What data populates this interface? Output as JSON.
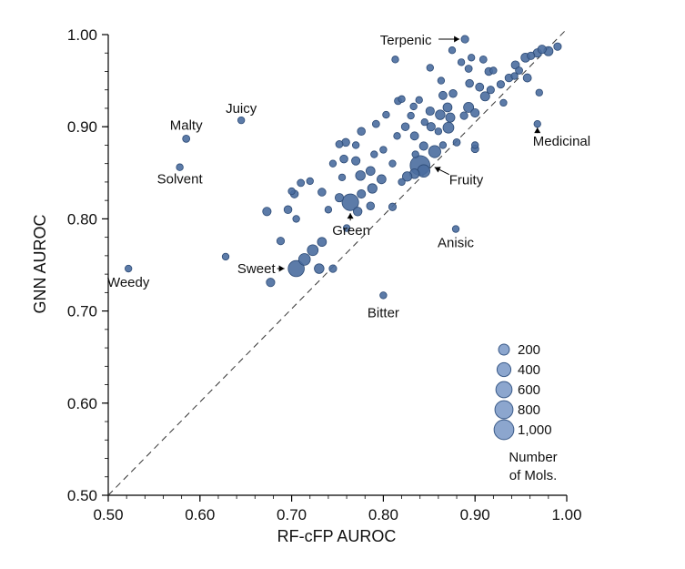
{
  "chart_data": {
    "type": "scatter",
    "title": "",
    "xlabel": "RF-cFP AUROC",
    "ylabel": "GNN AUROC",
    "xlim": [
      0.5,
      1.0
    ],
    "ylim": [
      0.5,
      1.0
    ],
    "x_ticks": [
      "0.50",
      "0.60",
      "0.70",
      "0.80",
      "0.90",
      "1.00"
    ],
    "y_ticks": [
      "0.50",
      "0.60",
      "0.70",
      "0.80",
      "0.90",
      "1.00"
    ],
    "diagonal_reference": true,
    "grid": false,
    "legend": {
      "placement": "bottom-right",
      "sizes": [
        200,
        400,
        600,
        800,
        1000
      ],
      "labels": [
        "200",
        "400",
        "600",
        "800",
        "1,000"
      ],
      "title_lines": [
        "Number",
        "of Mols."
      ]
    },
    "annotations": [
      {
        "label": "Terpenic",
        "x": 0.889,
        "y": 0.995,
        "arrow": true
      },
      {
        "label": "Juicy",
        "x": 0.645,
        "y": 0.907,
        "arrow": false
      },
      {
        "label": "Malty",
        "x": 0.585,
        "y": 0.887,
        "arrow": false
      },
      {
        "label": "Solvent",
        "x": 0.578,
        "y": 0.856,
        "arrow": false
      },
      {
        "label": "Medicinal",
        "x": 0.968,
        "y": 0.903,
        "arrow": true
      },
      {
        "label": "Fruity",
        "x": 0.84,
        "y": 0.858,
        "arrow": true
      },
      {
        "label": "Green",
        "x": 0.764,
        "y": 0.818,
        "arrow": true
      },
      {
        "label": "Anisic",
        "x": 0.879,
        "y": 0.789,
        "arrow": false
      },
      {
        "label": "Sweet",
        "x": 0.705,
        "y": 0.746,
        "arrow": true
      },
      {
        "label": "Weedy",
        "x": 0.522,
        "y": 0.746,
        "arrow": false
      },
      {
        "label": "Bitter",
        "x": 0.8,
        "y": 0.717,
        "arrow": false
      }
    ],
    "points": [
      {
        "x": 0.889,
        "y": 0.995,
        "n": 60
      },
      {
        "x": 0.645,
        "y": 0.907,
        "n": 40
      },
      {
        "x": 0.585,
        "y": 0.887,
        "n": 50
      },
      {
        "x": 0.578,
        "y": 0.856,
        "n": 40
      },
      {
        "x": 0.968,
        "y": 0.903,
        "n": 40
      },
      {
        "x": 0.84,
        "y": 0.858,
        "n": 1000
      },
      {
        "x": 0.764,
        "y": 0.818,
        "n": 650
      },
      {
        "x": 0.879,
        "y": 0.789,
        "n": 40
      },
      {
        "x": 0.705,
        "y": 0.746,
        "n": 600
      },
      {
        "x": 0.522,
        "y": 0.746,
        "n": 40
      },
      {
        "x": 0.8,
        "y": 0.717,
        "n": 40
      },
      {
        "x": 0.844,
        "y": 0.852,
        "n": 300
      },
      {
        "x": 0.856,
        "y": 0.873,
        "n": 280
      },
      {
        "x": 0.871,
        "y": 0.899,
        "n": 200
      },
      {
        "x": 0.893,
        "y": 0.921,
        "n": 160
      },
      {
        "x": 0.911,
        "y": 0.933,
        "n": 120
      },
      {
        "x": 0.714,
        "y": 0.756,
        "n": 250
      },
      {
        "x": 0.723,
        "y": 0.766,
        "n": 200
      },
      {
        "x": 0.73,
        "y": 0.746,
        "n": 140
      },
      {
        "x": 0.733,
        "y": 0.775,
        "n": 110
      },
      {
        "x": 0.677,
        "y": 0.731,
        "n": 90
      },
      {
        "x": 0.745,
        "y": 0.746,
        "n": 60
      },
      {
        "x": 0.688,
        "y": 0.776,
        "n": 60
      },
      {
        "x": 0.628,
        "y": 0.759,
        "n": 40
      },
      {
        "x": 0.673,
        "y": 0.808,
        "n": 90
      },
      {
        "x": 0.696,
        "y": 0.81,
        "n": 70
      },
      {
        "x": 0.703,
        "y": 0.827,
        "n": 70
      },
      {
        "x": 0.71,
        "y": 0.839,
        "n": 50
      },
      {
        "x": 0.72,
        "y": 0.841,
        "n": 40
      },
      {
        "x": 0.733,
        "y": 0.829,
        "n": 70
      },
      {
        "x": 0.752,
        "y": 0.823,
        "n": 90
      },
      {
        "x": 0.772,
        "y": 0.808,
        "n": 100
      },
      {
        "x": 0.786,
        "y": 0.814,
        "n": 70
      },
      {
        "x": 0.776,
        "y": 0.827,
        "n": 90
      },
      {
        "x": 0.788,
        "y": 0.833,
        "n": 130
      },
      {
        "x": 0.798,
        "y": 0.843,
        "n": 110
      },
      {
        "x": 0.81,
        "y": 0.813,
        "n": 60
      },
      {
        "x": 0.826,
        "y": 0.846,
        "n": 130
      },
      {
        "x": 0.834,
        "y": 0.849,
        "n": 140
      },
      {
        "x": 0.775,
        "y": 0.847,
        "n": 140
      },
      {
        "x": 0.786,
        "y": 0.852,
        "n": 110
      },
      {
        "x": 0.77,
        "y": 0.863,
        "n": 90
      },
      {
        "x": 0.757,
        "y": 0.865,
        "n": 70
      },
      {
        "x": 0.759,
        "y": 0.883,
        "n": 70
      },
      {
        "x": 0.752,
        "y": 0.881,
        "n": 50
      },
      {
        "x": 0.776,
        "y": 0.895,
        "n": 70
      },
      {
        "x": 0.792,
        "y": 0.903,
        "n": 50
      },
      {
        "x": 0.803,
        "y": 0.913,
        "n": 40
      },
      {
        "x": 0.816,
        "y": 0.928,
        "n": 50
      },
      {
        "x": 0.833,
        "y": 0.922,
        "n": 40
      },
      {
        "x": 0.824,
        "y": 0.9,
        "n": 70
      },
      {
        "x": 0.834,
        "y": 0.89,
        "n": 80
      },
      {
        "x": 0.844,
        "y": 0.879,
        "n": 90
      },
      {
        "x": 0.852,
        "y": 0.9,
        "n": 90
      },
      {
        "x": 0.851,
        "y": 0.917,
        "n": 90
      },
      {
        "x": 0.862,
        "y": 0.913,
        "n": 140
      },
      {
        "x": 0.873,
        "y": 0.91,
        "n": 120
      },
      {
        "x": 0.87,
        "y": 0.921,
        "n": 110
      },
      {
        "x": 0.865,
        "y": 0.934,
        "n": 80
      },
      {
        "x": 0.876,
        "y": 0.936,
        "n": 70
      },
      {
        "x": 0.888,
        "y": 0.912,
        "n": 60
      },
      {
        "x": 0.9,
        "y": 0.915,
        "n": 90
      },
      {
        "x": 0.9,
        "y": 0.876,
        "n": 60
      },
      {
        "x": 0.905,
        "y": 0.943,
        "n": 80
      },
      {
        "x": 0.915,
        "y": 0.96,
        "n": 70
      },
      {
        "x": 0.917,
        "y": 0.94,
        "n": 60
      },
      {
        "x": 0.928,
        "y": 0.946,
        "n": 60
      },
      {
        "x": 0.937,
        "y": 0.953,
        "n": 70
      },
      {
        "x": 0.944,
        "y": 0.967,
        "n": 80
      },
      {
        "x": 0.955,
        "y": 0.975,
        "n": 110
      },
      {
        "x": 0.957,
        "y": 0.953,
        "n": 80
      },
      {
        "x": 0.968,
        "y": 0.98,
        "n": 90
      },
      {
        "x": 0.973,
        "y": 0.984,
        "n": 90
      },
      {
        "x": 0.98,
        "y": 0.982,
        "n": 120
      },
      {
        "x": 0.99,
        "y": 0.987,
        "n": 60
      },
      {
        "x": 0.961,
        "y": 0.977,
        "n": 60
      },
      {
        "x": 0.948,
        "y": 0.961,
        "n": 50
      },
      {
        "x": 0.931,
        "y": 0.926,
        "n": 40
      },
      {
        "x": 0.943,
        "y": 0.955,
        "n": 40
      },
      {
        "x": 0.97,
        "y": 0.937,
        "n": 40
      },
      {
        "x": 0.9,
        "y": 0.88,
        "n": 40
      },
      {
        "x": 0.88,
        "y": 0.883,
        "n": 50
      },
      {
        "x": 0.894,
        "y": 0.947,
        "n": 70
      },
      {
        "x": 0.893,
        "y": 0.963,
        "n": 50
      },
      {
        "x": 0.885,
        "y": 0.97,
        "n": 40
      },
      {
        "x": 0.896,
        "y": 0.975,
        "n": 40
      },
      {
        "x": 0.909,
        "y": 0.973,
        "n": 50
      },
      {
        "x": 0.92,
        "y": 0.961,
        "n": 40
      },
      {
        "x": 0.813,
        "y": 0.973,
        "n": 40
      },
      {
        "x": 0.875,
        "y": 0.983,
        "n": 40
      },
      {
        "x": 0.851,
        "y": 0.964,
        "n": 40
      },
      {
        "x": 0.863,
        "y": 0.95,
        "n": 40
      },
      {
        "x": 0.839,
        "y": 0.929,
        "n": 40
      },
      {
        "x": 0.82,
        "y": 0.93,
        "n": 40
      },
      {
        "x": 0.77,
        "y": 0.88,
        "n": 40
      },
      {
        "x": 0.81,
        "y": 0.86,
        "n": 40
      },
      {
        "x": 0.835,
        "y": 0.87,
        "n": 40
      },
      {
        "x": 0.8,
        "y": 0.875,
        "n": 40
      },
      {
        "x": 0.79,
        "y": 0.87,
        "n": 40
      },
      {
        "x": 0.815,
        "y": 0.89,
        "n": 40
      },
      {
        "x": 0.845,
        "y": 0.905,
        "n": 40
      },
      {
        "x": 0.83,
        "y": 0.912,
        "n": 40
      },
      {
        "x": 0.86,
        "y": 0.895,
        "n": 40
      },
      {
        "x": 0.865,
        "y": 0.88,
        "n": 40
      },
      {
        "x": 0.82,
        "y": 0.84,
        "n": 40
      },
      {
        "x": 0.755,
        "y": 0.845,
        "n": 40
      },
      {
        "x": 0.74,
        "y": 0.81,
        "n": 40
      },
      {
        "x": 0.745,
        "y": 0.86,
        "n": 40
      },
      {
        "x": 0.7,
        "y": 0.83,
        "n": 40
      },
      {
        "x": 0.705,
        "y": 0.8,
        "n": 40
      },
      {
        "x": 0.76,
        "y": 0.79,
        "n": 40
      }
    ]
  }
}
